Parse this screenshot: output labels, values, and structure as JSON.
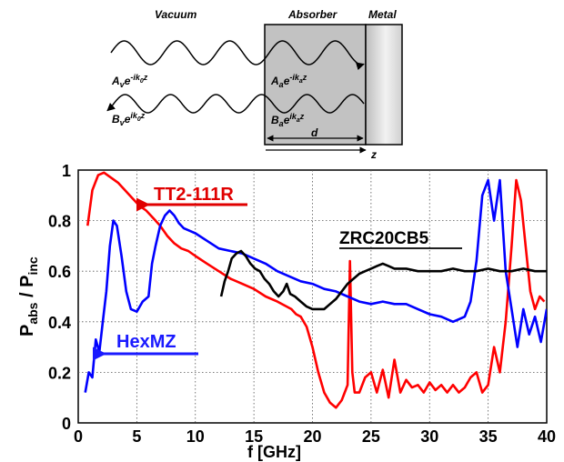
{
  "diagram": {
    "region_labels": {
      "vacuum": "Vacuum",
      "absorber": "Absorber",
      "metal": "Metal"
    },
    "waves": {
      "vacuum_incident": {
        "base": "A",
        "sub": "v",
        "e": "e",
        "exp": "-ik",
        "exp_sub": "0",
        "exp_tail": "z"
      },
      "vacuum_reflected": {
        "base": "B",
        "sub": "v",
        "e": "e",
        "exp": "ik",
        "exp_sub": "0",
        "exp_tail": "z"
      },
      "absorber_forward": {
        "base": "A",
        "sub": "a",
        "e": "e",
        "exp": "-ik",
        "exp_sub": "a",
        "exp_tail": "z"
      },
      "absorber_backward": {
        "base": "B",
        "sub": "a",
        "e": "e",
        "exp": "ik",
        "exp_sub": "a",
        "exp_tail": "z"
      }
    },
    "thickness_label": "d",
    "axis_label": "z"
  },
  "chart_data": {
    "type": "line",
    "xlabel": "f  [GHz]",
    "ylabel": {
      "main": "P",
      "sub1": "abs",
      "sep": " / P",
      "sub2": "inc"
    },
    "xlim": [
      0,
      40
    ],
    "ylim": [
      0,
      1
    ],
    "xticks": [
      0,
      5,
      10,
      15,
      20,
      25,
      30,
      35,
      40
    ],
    "yticks": [
      0,
      0.2,
      0.4,
      0.6,
      0.8,
      1
    ],
    "ytick_labels": [
      "0",
      "0.2",
      "0.4",
      "0.6",
      "0.8",
      "1"
    ],
    "grid": true,
    "series": [
      {
        "name": "TT2-111R",
        "color": "#ff0000",
        "x": [
          0.8,
          1.2,
          1.7,
          2.2,
          2.8,
          3.4,
          4,
          4.6,
          5.2,
          5.8,
          6.4,
          7,
          7.6,
          8.2,
          8.8,
          9.4,
          10,
          11,
          12,
          13,
          14,
          15,
          16,
          17,
          17.8,
          18.2,
          18.6,
          19,
          19.5,
          20,
          20.5,
          21,
          21.5,
          22,
          22.5,
          23,
          23.2,
          23.4,
          23.6,
          24,
          24.5,
          25,
          25.5,
          26,
          26.5,
          27,
          27.5,
          28,
          28.5,
          29,
          29.5,
          30,
          30.5,
          31,
          31.5,
          32,
          32.5,
          33,
          33.5,
          34,
          34.5,
          35,
          35.5,
          36,
          36.5,
          37,
          37.4,
          37.8,
          38.2,
          38.6,
          39,
          39.4,
          39.8
        ],
        "y": [
          0.78,
          0.92,
          0.98,
          0.99,
          0.97,
          0.95,
          0.92,
          0.89,
          0.86,
          0.84,
          0.81,
          0.78,
          0.74,
          0.71,
          0.69,
          0.68,
          0.66,
          0.63,
          0.6,
          0.57,
          0.55,
          0.53,
          0.5,
          0.48,
          0.46,
          0.45,
          0.43,
          0.42,
          0.38,
          0.3,
          0.2,
          0.12,
          0.08,
          0.06,
          0.09,
          0.15,
          0.64,
          0.2,
          0.12,
          0.12,
          0.18,
          0.2,
          0.12,
          0.21,
          0.1,
          0.25,
          0.12,
          0.17,
          0.14,
          0.15,
          0.12,
          0.16,
          0.13,
          0.15,
          0.12,
          0.15,
          0.12,
          0.14,
          0.18,
          0.2,
          0.12,
          0.15,
          0.3,
          0.2,
          0.4,
          0.7,
          0.96,
          0.88,
          0.7,
          0.52,
          0.45,
          0.5,
          0.48
        ]
      },
      {
        "name": "HexMZ",
        "color": "#0000ff",
        "x": [
          0.6,
          0.9,
          1.2,
          1.5,
          1.8,
          2.1,
          2.4,
          2.7,
          3,
          3.3,
          3.7,
          4.1,
          4.5,
          5,
          5.5,
          6,
          6.3,
          6.6,
          7,
          7.4,
          7.8,
          8.2,
          8.6,
          9,
          9.5,
          10,
          11,
          12,
          13,
          14,
          15,
          16,
          17,
          18,
          19,
          20,
          21,
          22,
          23,
          24,
          25,
          26,
          27,
          28,
          29,
          30,
          31,
          32,
          33,
          33.5,
          34,
          34.5,
          35,
          35.5,
          36,
          36.5,
          37,
          37.5,
          38,
          38.5,
          39,
          39.5,
          40
        ],
        "y": [
          0.12,
          0.2,
          0.18,
          0.33,
          0.28,
          0.4,
          0.52,
          0.7,
          0.8,
          0.78,
          0.66,
          0.52,
          0.45,
          0.44,
          0.48,
          0.5,
          0.63,
          0.7,
          0.78,
          0.82,
          0.84,
          0.82,
          0.79,
          0.77,
          0.76,
          0.75,
          0.72,
          0.69,
          0.68,
          0.67,
          0.65,
          0.63,
          0.6,
          0.58,
          0.56,
          0.55,
          0.53,
          0.52,
          0.5,
          0.48,
          0.47,
          0.48,
          0.47,
          0.47,
          0.45,
          0.43,
          0.42,
          0.4,
          0.42,
          0.48,
          0.64,
          0.9,
          0.96,
          0.8,
          0.96,
          0.6,
          0.45,
          0.3,
          0.45,
          0.35,
          0.42,
          0.32,
          0.45
        ]
      },
      {
        "name": "ZRC20CB5",
        "color": "#000000",
        "x": [
          12.2,
          12.5,
          12.8,
          13.1,
          13.5,
          13.9,
          14.3,
          14.7,
          15.1,
          15.5,
          15.9,
          16.3,
          16.7,
          17.1,
          17.5,
          17.8,
          18.1,
          18.5,
          19,
          19.5,
          20,
          20.5,
          21,
          21.5,
          22,
          22.5,
          23,
          23.5,
          24,
          24.5,
          25,
          25.5,
          26,
          26.5,
          27,
          28,
          29,
          30,
          31,
          32,
          33,
          34,
          35,
          36,
          37,
          38,
          39,
          40
        ],
        "y": [
          0.5,
          0.56,
          0.6,
          0.65,
          0.67,
          0.68,
          0.66,
          0.63,
          0.61,
          0.6,
          0.57,
          0.55,
          0.52,
          0.5,
          0.52,
          0.55,
          0.51,
          0.5,
          0.48,
          0.46,
          0.45,
          0.45,
          0.45,
          0.47,
          0.49,
          0.52,
          0.55,
          0.57,
          0.59,
          0.6,
          0.61,
          0.62,
          0.63,
          0.62,
          0.61,
          0.61,
          0.6,
          0.6,
          0.6,
          0.61,
          0.6,
          0.6,
          0.61,
          0.6,
          0.6,
          0.61,
          0.6,
          0.6
        ]
      }
    ]
  }
}
